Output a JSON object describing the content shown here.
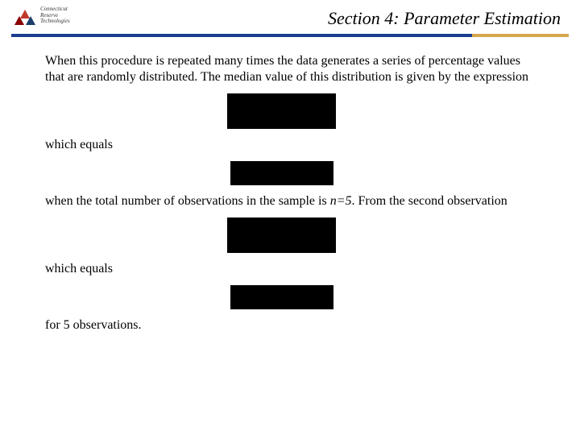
{
  "logo": {
    "line1": "Connecticut",
    "line2": "Reserve",
    "line3": "Technologies"
  },
  "header": {
    "title": "Section 4: Parameter Estimation"
  },
  "body": {
    "para1": "When this procedure is repeated many times the data generates a series of percentage values that are randomly distributed.  The median value of this distribution is given by the expression",
    "which_equals_1": "which equals",
    "para2_pre": "when the total number of observations in the sample is ",
    "para2_n": "n=5",
    "para2_post": ".  From the second observation",
    "which_equals_2": "which equals",
    "para3": "for 5 observations."
  },
  "colors": {
    "divider_main": "#1a3d8f",
    "divider_accent": "#d4a84b",
    "redact": "#000000"
  }
}
